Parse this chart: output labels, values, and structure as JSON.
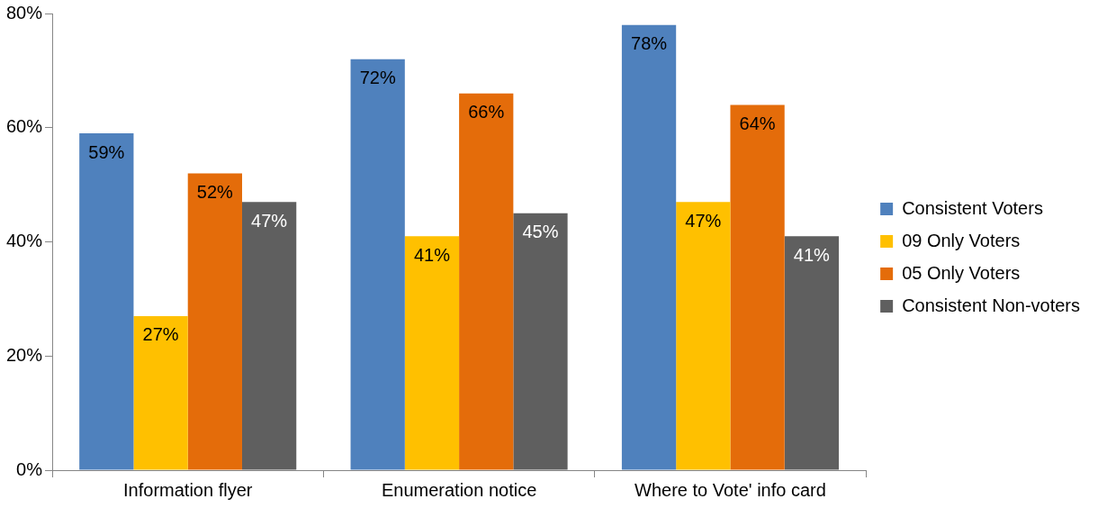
{
  "chart_data": {
    "type": "bar",
    "categories": [
      "Information flyer",
      "Enumeration notice",
      "Where to Vote' info card"
    ],
    "series": [
      {
        "name": "Consistent Voters",
        "color": "#4f81bd",
        "values": [
          59,
          72,
          78
        ],
        "value_labels": [
          "59%",
          "72%",
          "78%"
        ]
      },
      {
        "name": "09 Only Voters",
        "color": "#ffc000",
        "values": [
          27,
          41,
          47
        ],
        "value_labels": [
          "27%",
          "41%",
          "47%"
        ]
      },
      {
        "name": "05 Only Voters",
        "color": "#e46c0a",
        "values": [
          52,
          66,
          64
        ],
        "value_labels": [
          "52%",
          "66%",
          "64%"
        ]
      },
      {
        "name": "Consistent Non-voters",
        "color": "#5f5f5f",
        "values": [
          47,
          45,
          41
        ],
        "value_labels": [
          "47%",
          "45%",
          "41%"
        ]
      }
    ],
    "ylim": [
      0,
      80
    ],
    "yticks": [
      {
        "value": 0,
        "label": "0%"
      },
      {
        "value": 20,
        "label": "20%"
      },
      {
        "value": 40,
        "label": "40%"
      },
      {
        "value": 60,
        "label": "60%"
      },
      {
        "value": 80,
        "label": "80%"
      }
    ],
    "grid": false,
    "legend": "right"
  }
}
